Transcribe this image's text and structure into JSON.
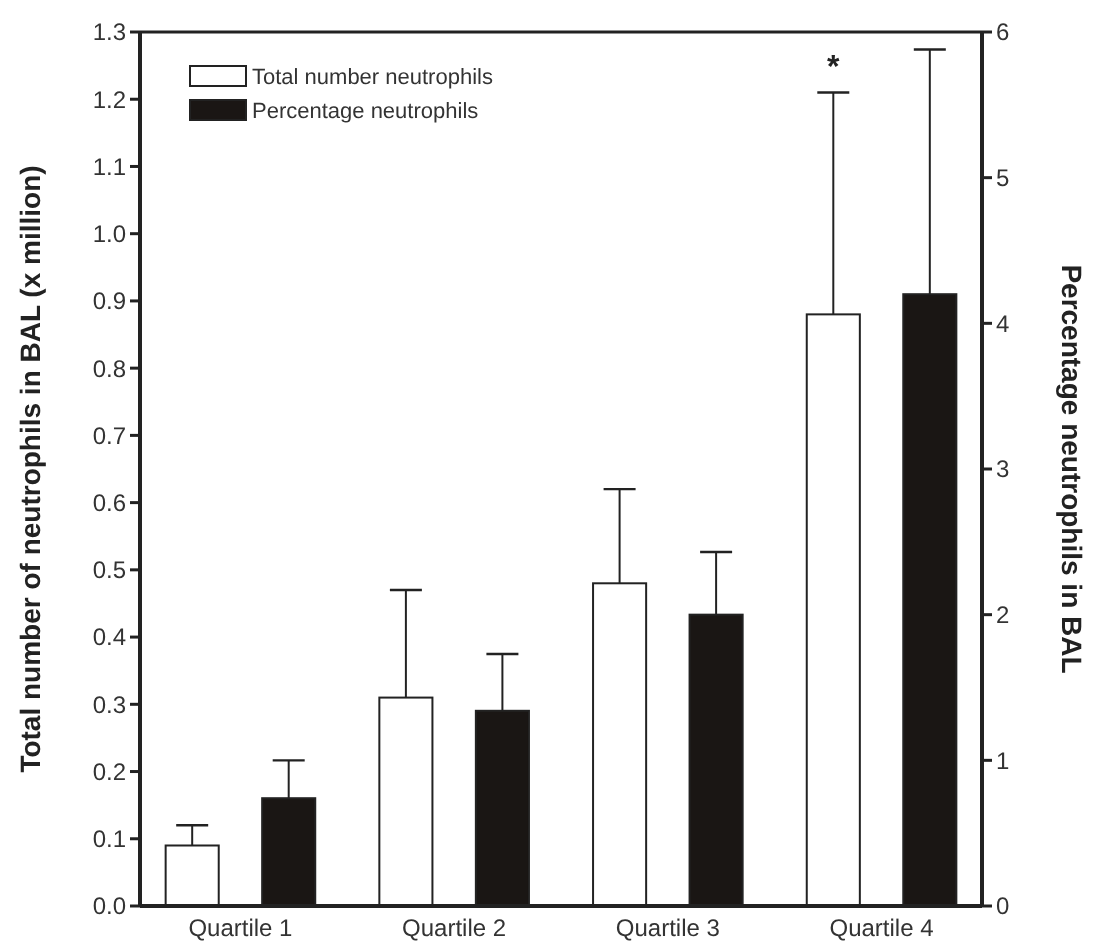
{
  "chart_data": {
    "type": "bar",
    "categories": [
      "Quartile 1",
      "Quartile 2",
      "Quartile 3",
      "Quartile 4"
    ],
    "ylabel": "Total number of neutrophils in BAL (x million)",
    "y2label": "Percentage neutrophils in BAL",
    "series": [
      {
        "name": "Total number neutrophils",
        "color": "#ffffff",
        "values": [
          0.09,
          0.31,
          0.48,
          0.88
        ],
        "errors": [
          [
            0.09,
            0.12
          ],
          [
            0.31,
            0.47
          ],
          [
            0.48,
            0.62
          ],
          [
            0.88,
            1.21
          ]
        ]
      },
      {
        "name": "Percentage neutrophils",
        "color": "#1a1614",
        "axis": "y2",
        "values": [
          0.74,
          1.34,
          2.0,
          4.2
        ],
        "errors": [
          [
            0.74,
            1.0
          ],
          [
            1.34,
            1.73
          ],
          [
            2.0,
            2.43
          ],
          [
            4.2,
            5.88
          ]
        ]
      }
    ],
    "ylim": [
      0,
      1.3
    ],
    "yticks": [
      {
        "value": 0,
        "label": "0.0"
      },
      0.1,
      0.2,
      0.3,
      0.4,
      0.5,
      0.6,
      0.7,
      0.8,
      0.9,
      {
        "value": 1,
        "label": "1.0"
      },
      1.1,
      1.2,
      1.3
    ],
    "y2lim": [
      0,
      6
    ],
    "y2ticks": [
      0,
      1,
      2,
      3,
      4,
      5,
      6
    ],
    "annotations": [
      "*"
    ],
    "legend": "top left"
  }
}
